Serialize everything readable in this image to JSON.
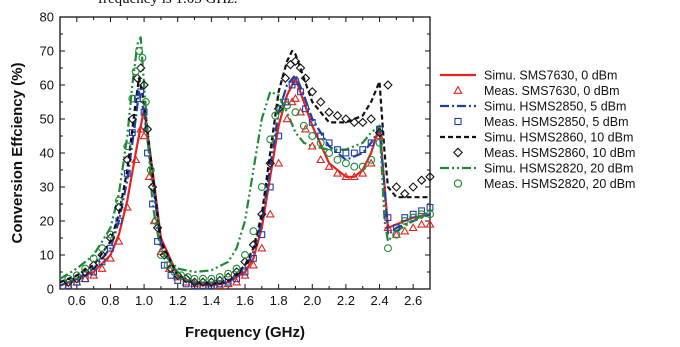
{
  "page": {
    "cropped_text": "frequency is 1.03 GHz."
  },
  "chart_data": {
    "type": "line",
    "xlabel": "Frequency (GHz)",
    "ylabel": "Conversion Effciency (%)",
    "xlim": [
      0.5,
      2.7
    ],
    "ylim": [
      0,
      80
    ],
    "xticks": [
      0.6,
      0.8,
      1.0,
      1.2,
      1.4,
      1.6,
      1.8,
      2.0,
      2.2,
      2.4,
      2.6
    ],
    "yticks": [
      0,
      10,
      20,
      30,
      40,
      50,
      60,
      70,
      80
    ],
    "grid": false,
    "legend_position": "right",
    "series": [
      {
        "name": "Simu. SMS7630, 0 dBm",
        "kind": "line",
        "style": "solid",
        "color": "#e3231f",
        "x": [
          0.5,
          0.6,
          0.7,
          0.8,
          0.85,
          0.9,
          0.95,
          1.0,
          1.05,
          1.1,
          1.2,
          1.3,
          1.4,
          1.5,
          1.6,
          1.65,
          1.7,
          1.75,
          1.8,
          1.85,
          1.9,
          1.95,
          2.0,
          2.1,
          2.2,
          2.25,
          2.3,
          2.35,
          2.4,
          2.43,
          2.45,
          2.5,
          2.6,
          2.7
        ],
        "y": [
          1,
          3,
          5,
          10,
          16,
          26,
          40,
          53,
          35,
          15,
          4,
          1.5,
          1,
          2,
          5,
          9,
          18,
          33,
          48,
          57,
          62,
          55,
          48,
          37,
          33,
          33,
          35,
          40,
          48,
          30,
          18,
          19,
          21,
          22
        ]
      },
      {
        "name": "Meas. SMS7630, 0 dBm",
        "kind": "marker",
        "marker": "triangle",
        "color": "#e3231f",
        "x": [
          0.55,
          0.6,
          0.65,
          0.7,
          0.75,
          0.8,
          0.85,
          0.9,
          0.95,
          0.98,
          1.0,
          1.03,
          1.06,
          1.1,
          1.15,
          1.2,
          1.25,
          1.3,
          1.35,
          1.4,
          1.45,
          1.5,
          1.55,
          1.6,
          1.65,
          1.7,
          1.75,
          1.8,
          1.85,
          1.88,
          1.9,
          1.93,
          1.96,
          2.0,
          2.05,
          2.1,
          2.15,
          2.2,
          2.25,
          2.3,
          2.35,
          2.4,
          2.45,
          2.5,
          2.55,
          2.6,
          2.65,
          2.7
        ],
        "y": [
          1,
          2,
          3,
          4,
          6,
          9,
          14,
          24,
          38,
          47,
          45,
          33,
          20,
          11,
          6,
          3.5,
          2,
          1.5,
          1,
          1,
          1,
          1.5,
          2,
          4,
          7,
          12,
          22,
          37,
          50,
          55,
          56,
          52,
          47,
          42,
          38,
          36,
          34,
          33,
          33,
          34,
          37,
          45,
          18,
          16,
          17,
          18,
          19,
          19
        ]
      },
      {
        "name": "Simu. HSMS2850, 5 dBm",
        "kind": "line",
        "style": "dashdot",
        "color": "#1f3fa0",
        "x": [
          0.5,
          0.6,
          0.7,
          0.8,
          0.85,
          0.9,
          0.95,
          0.97,
          1.0,
          1.05,
          1.1,
          1.2,
          1.3,
          1.4,
          1.5,
          1.6,
          1.65,
          1.7,
          1.75,
          1.8,
          1.85,
          1.9,
          1.95,
          2.0,
          2.1,
          2.2,
          2.3,
          2.35,
          2.4,
          2.43,
          2.45,
          2.5,
          2.6,
          2.7
        ],
        "y": [
          1,
          3,
          6,
          12,
          20,
          32,
          50,
          58,
          52,
          32,
          13,
          4,
          1.5,
          1,
          2,
          6,
          11,
          20,
          36,
          52,
          60,
          63,
          57,
          50,
          42,
          38,
          40,
          43,
          47,
          30,
          16,
          18,
          20,
          22
        ]
      },
      {
        "name": "Meas. HSMS2850, 5 dBm",
        "kind": "marker",
        "marker": "square",
        "color": "#1f3fa0",
        "x": [
          0.55,
          0.6,
          0.65,
          0.7,
          0.75,
          0.8,
          0.85,
          0.9,
          0.93,
          0.96,
          0.98,
          1.0,
          1.02,
          1.05,
          1.08,
          1.12,
          1.16,
          1.2,
          1.25,
          1.3,
          1.35,
          1.4,
          1.45,
          1.5,
          1.55,
          1.6,
          1.65,
          1.7,
          1.75,
          1.8,
          1.84,
          1.88,
          1.9,
          1.93,
          1.96,
          2.0,
          2.05,
          2.1,
          2.15,
          2.2,
          2.25,
          2.3,
          2.35,
          2.4,
          2.45,
          2.5,
          2.55,
          2.6,
          2.65,
          2.7
        ],
        "y": [
          1,
          2,
          3,
          5,
          8,
          12,
          20,
          34,
          46,
          56,
          58,
          52,
          40,
          25,
          14,
          7,
          4,
          2.5,
          1.5,
          1,
          1,
          1,
          1.5,
          2,
          3,
          5,
          9,
          16,
          30,
          45,
          55,
          60,
          61,
          58,
          53,
          49,
          45,
          43,
          41,
          40,
          40,
          41,
          43,
          47,
          21,
          18,
          21,
          22,
          23,
          24
        ]
      },
      {
        "name": "Simu. HSMS2860, 10 dBm",
        "kind": "line",
        "style": "dash",
        "color": "#111111",
        "x": [
          0.5,
          0.6,
          0.7,
          0.8,
          0.85,
          0.9,
          0.95,
          0.97,
          1.0,
          1.05,
          1.1,
          1.2,
          1.3,
          1.4,
          1.5,
          1.6,
          1.65,
          1.7,
          1.75,
          1.8,
          1.85,
          1.88,
          1.9,
          1.95,
          2.0,
          2.1,
          2.2,
          2.3,
          2.35,
          2.4,
          2.43,
          2.45,
          2.5,
          2.6,
          2.7
        ],
        "y": [
          2,
          4,
          7,
          14,
          22,
          35,
          55,
          62,
          55,
          34,
          14,
          4,
          2,
          1.5,
          2,
          7,
          12,
          22,
          40,
          58,
          67,
          70,
          69,
          62,
          55,
          49,
          49,
          51,
          55,
          61,
          40,
          30,
          27,
          27,
          27
        ]
      },
      {
        "name": "Meas. HSMS2860, 10 dBm",
        "kind": "marker",
        "marker": "diamond",
        "color": "#111111",
        "x": [
          0.55,
          0.6,
          0.65,
          0.7,
          0.75,
          0.8,
          0.85,
          0.9,
          0.93,
          0.96,
          0.98,
          1.0,
          1.02,
          1.05,
          1.08,
          1.12,
          1.16,
          1.2,
          1.25,
          1.3,
          1.35,
          1.4,
          1.45,
          1.5,
          1.55,
          1.6,
          1.65,
          1.7,
          1.75,
          1.8,
          1.84,
          1.87,
          1.9,
          1.93,
          1.96,
          2.0,
          2.05,
          2.1,
          2.15,
          2.2,
          2.25,
          2.3,
          2.35,
          2.4,
          2.45,
          2.5,
          2.55,
          2.6,
          2.65,
          2.7
        ],
        "y": [
          2,
          3,
          5,
          7,
          10,
          15,
          24,
          38,
          50,
          62,
          65,
          60,
          47,
          30,
          18,
          10,
          6,
          4,
          3,
          2,
          2,
          2,
          2.5,
          3.5,
          5,
          8,
          13,
          22,
          37,
          53,
          62,
          66,
          67,
          65,
          62,
          58,
          55,
          52,
          51,
          50,
          49,
          49,
          50,
          46,
          60,
          30,
          28,
          30,
          32,
          33
        ]
      },
      {
        "name": "Simu. HSMS2820, 20 dBm",
        "kind": "line",
        "style": "dashdotdot",
        "color": "#1e8a35",
        "x": [
          0.5,
          0.6,
          0.7,
          0.8,
          0.85,
          0.9,
          0.93,
          0.96,
          0.98,
          1.0,
          1.05,
          1.1,
          1.2,
          1.3,
          1.4,
          1.5,
          1.55,
          1.6,
          1.65,
          1.7,
          1.75,
          1.8,
          1.85,
          1.9,
          1.95,
          2.0,
          2.1,
          2.2,
          2.3,
          2.35,
          2.4,
          2.43,
          2.45,
          2.5,
          2.6,
          2.7
        ],
        "y": [
          3,
          6,
          10,
          18,
          28,
          45,
          60,
          72,
          74,
          60,
          25,
          11,
          6,
          5,
          5.5,
          8,
          12,
          20,
          35,
          50,
          58,
          57,
          52,
          46,
          43,
          42,
          41,
          41,
          43,
          46,
          48,
          20,
          14,
          17,
          20,
          23
        ]
      },
      {
        "name": "Meas. HSMS2820, 20 dBm",
        "kind": "marker",
        "marker": "circle",
        "color": "#1e8a35",
        "x": [
          0.55,
          0.6,
          0.65,
          0.7,
          0.75,
          0.8,
          0.85,
          0.9,
          0.93,
          0.95,
          0.97,
          0.99,
          1.01,
          1.04,
          1.07,
          1.1,
          1.14,
          1.18,
          1.22,
          1.26,
          1.3,
          1.35,
          1.4,
          1.45,
          1.5,
          1.55,
          1.6,
          1.65,
          1.7,
          1.75,
          1.78,
          1.81,
          1.85,
          1.9,
          1.95,
          2.0,
          2.05,
          2.1,
          2.15,
          2.2,
          2.25,
          2.3,
          2.35,
          2.4,
          2.45,
          2.5,
          2.55,
          2.6,
          2.65,
          2.7
        ],
        "y": [
          3,
          4,
          6,
          9,
          12,
          16,
          26,
          42,
          56,
          64,
          70,
          68,
          55,
          35,
          20,
          10,
          7,
          5,
          4,
          3.5,
          3,
          3,
          3,
          3.5,
          4.5,
          6,
          10,
          17,
          30,
          44,
          51,
          53,
          54,
          52,
          48,
          45,
          43,
          40,
          38,
          37,
          36,
          36,
          38,
          43,
          12,
          16,
          20,
          21,
          22,
          22
        ]
      }
    ]
  }
}
